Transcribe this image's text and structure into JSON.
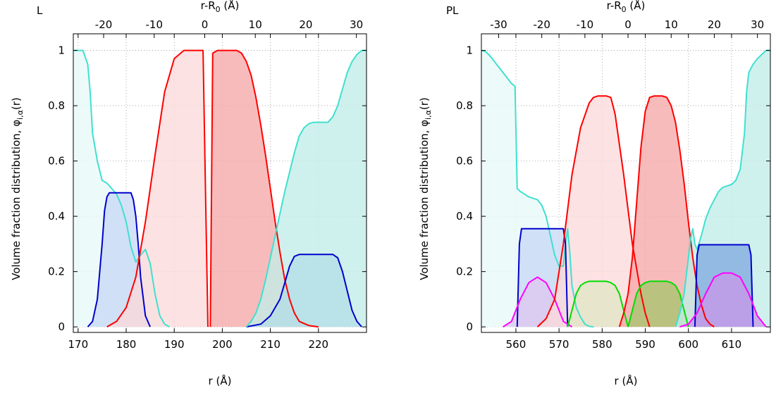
{
  "chart_data": [
    {
      "type": "area",
      "panel_label": "L",
      "xlabel": "r (Å)",
      "x2label": "r-R",
      "x2label_sub": "0",
      "x2label_tail": " (Å)",
      "ylabel": "Volume fraction distribution, φ",
      "ylabel_sub": "i,α",
      "ylabel_tail": "(r)",
      "xlim": [
        169,
        230
      ],
      "x2lim": [
        -26,
        32
      ],
      "ylim": [
        -0.02,
        1.06
      ],
      "xticks": [
        170,
        180,
        190,
        200,
        210,
        220
      ],
      "x2ticks": [
        -20,
        -10,
        0,
        10,
        20,
        30
      ],
      "yticks": [
        0,
        0.2,
        0.4,
        0.6,
        0.8,
        1
      ],
      "xtick_labels": [
        "170",
        "180",
        "190",
        "200",
        "210",
        "220"
      ],
      "x2tick_labels": [
        "-20",
        "-10",
        "0",
        "10",
        "20",
        "30"
      ],
      "ytick_labels": [
        "0",
        "0.2",
        "0.4",
        "0.6",
        "0.8",
        "1"
      ],
      "grid": true,
      "series": [
        {
          "color": "#40e0d0",
          "fill": "#e8f8f8",
          "x": [
            169,
            170,
            171,
            172,
            172.5,
            173,
            174,
            175,
            176,
            177,
            178,
            179,
            180,
            181,
            182,
            183,
            184,
            185,
            186,
            187,
            188,
            189
          ],
          "y": [
            1.0,
            1.0,
            1.0,
            0.95,
            0.85,
            0.7,
            0.6,
            0.53,
            0.52,
            0.5,
            0.48,
            0.44,
            0.38,
            0.29,
            0.235,
            0.26,
            0.28,
            0.23,
            0.12,
            0.04,
            0.01,
            0.0
          ]
        },
        {
          "color": "#0000cd",
          "fill": "#c8d8f5",
          "x": [
            172,
            173,
            174,
            175,
            175.5,
            176,
            176.5,
            177,
            179,
            181,
            181.5,
            182,
            182.5,
            183,
            184,
            185
          ],
          "y": [
            0.0,
            0.02,
            0.1,
            0.3,
            0.42,
            0.47,
            0.485,
            0.485,
            0.485,
            0.485,
            0.46,
            0.4,
            0.3,
            0.18,
            0.04,
            0.0
          ]
        },
        {
          "color": "#ff0000",
          "fill": "#fbdada",
          "x": [
            176,
            178,
            180,
            182,
            184,
            186,
            188,
            190,
            192,
            194,
            196,
            196.5,
            197
          ],
          "y": [
            0.0,
            0.02,
            0.07,
            0.18,
            0.38,
            0.62,
            0.85,
            0.97,
            1.0,
            1.0,
            1.0,
            0.5,
            0.0
          ]
        },
        {
          "color": "#ff0000",
          "fill": "#f6a8a8",
          "x": [
            197.5,
            198,
            199,
            200,
            202,
            203,
            204,
            205,
            206,
            207,
            208,
            209,
            210,
            211,
            212,
            213,
            214,
            215,
            216,
            218,
            220
          ],
          "y": [
            0.0,
            0.99,
            1.0,
            1.0,
            1.0,
            1.0,
            0.99,
            0.96,
            0.91,
            0.83,
            0.73,
            0.62,
            0.5,
            0.38,
            0.27,
            0.17,
            0.1,
            0.05,
            0.02,
            0.005,
            0.0
          ]
        },
        {
          "color": "#0000cd",
          "fill": "#80aae0",
          "x": [
            205,
            208,
            210,
            212,
            213,
            214,
            215,
            216,
            218,
            221,
            223,
            224,
            225,
            226,
            227,
            228,
            229
          ],
          "y": [
            0.0,
            0.01,
            0.04,
            0.1,
            0.16,
            0.22,
            0.255,
            0.262,
            0.262,
            0.262,
            0.262,
            0.25,
            0.2,
            0.13,
            0.06,
            0.02,
            0.0
          ]
        },
        {
          "color": "#40e0d0",
          "fill": "#c2ede8",
          "x": [
            205,
            206,
            207,
            208,
            209,
            210,
            211,
            212,
            213,
            214,
            215,
            216,
            217,
            218,
            219,
            220,
            221,
            222,
            223,
            224,
            225,
            226,
            227,
            228,
            229,
            230
          ],
          "y": [
            0.0,
            0.02,
            0.05,
            0.1,
            0.17,
            0.25,
            0.33,
            0.41,
            0.49,
            0.56,
            0.63,
            0.69,
            0.72,
            0.735,
            0.74,
            0.74,
            0.74,
            0.74,
            0.76,
            0.8,
            0.86,
            0.92,
            0.96,
            0.985,
            1.0,
            1.0
          ]
        }
      ]
    },
    {
      "type": "area",
      "panel_label": "PL",
      "xlabel": "r (Å)",
      "x2label": "r-R",
      "x2label_sub": "0",
      "x2label_tail": " (Å)",
      "ylabel": "Volume fraction distribution, φ",
      "ylabel_sub": "i,α",
      "ylabel_tail": "(r)",
      "xlim": [
        552,
        619
      ],
      "x2lim": [
        -34,
        33
      ],
      "ylim": [
        -0.02,
        1.06
      ],
      "xticks": [
        560,
        570,
        580,
        590,
        600,
        610
      ],
      "x2ticks": [
        -30,
        -20,
        -10,
        0,
        10,
        20,
        30
      ],
      "yticks": [
        0,
        0.2,
        0.4,
        0.6,
        0.8,
        1
      ],
      "xtick_labels": [
        "560",
        "570",
        "580",
        "590",
        "600",
        "610"
      ],
      "x2tick_labels": [
        "-30",
        "-20",
        "-10",
        "0",
        "10",
        "20",
        "30"
      ],
      "ytick_labels": [
        "0",
        "0.2",
        "0.4",
        "0.6",
        "0.8",
        "1"
      ],
      "grid": true,
      "series": [
        {
          "color": "#40e0d0",
          "fill": "#e8f8f8",
          "x": [
            552,
            553,
            554,
            555,
            556,
            557,
            558,
            559,
            559.8,
            560.3,
            561,
            562,
            563,
            564,
            565,
            566,
            567,
            568,
            569,
            570,
            571,
            571.5,
            572,
            572.5,
            573,
            574,
            575,
            576,
            577,
            578
          ],
          "y": [
            1.0,
            0.995,
            0.98,
            0.96,
            0.94,
            0.92,
            0.9,
            0.88,
            0.87,
            0.5,
            0.49,
            0.48,
            0.47,
            0.465,
            0.46,
            0.44,
            0.4,
            0.33,
            0.26,
            0.22,
            0.22,
            0.3,
            0.355,
            0.27,
            0.15,
            0.07,
            0.035,
            0.01,
            0.002,
            0.0
          ]
        },
        {
          "color": "#0000cd",
          "fill": "#c8d8f5",
          "x": [
            560.3,
            560.8,
            561.3,
            571,
            571.5,
            572
          ],
          "y": [
            0.0,
            0.3,
            0.355,
            0.355,
            0.3,
            0.0
          ]
        },
        {
          "color": "#ff00ff",
          "fill": "#dcc8f0",
          "x": [
            557,
            559,
            561,
            563,
            565,
            567,
            569,
            571,
            573
          ],
          "y": [
            0.0,
            0.02,
            0.1,
            0.16,
            0.18,
            0.16,
            0.1,
            0.02,
            0.0
          ]
        },
        {
          "color": "#ff0000",
          "fill": "#fbdada",
          "x": [
            565,
            567,
            569,
            571,
            573,
            575,
            577,
            578,
            579,
            580,
            581,
            582,
            583,
            585,
            587,
            589,
            590,
            591
          ],
          "y": [
            0.0,
            0.03,
            0.1,
            0.3,
            0.55,
            0.72,
            0.81,
            0.83,
            0.835,
            0.835,
            0.835,
            0.83,
            0.77,
            0.55,
            0.3,
            0.12,
            0.05,
            0.0
          ]
        },
        {
          "color": "#00dd00",
          "fill": "#e0e6c4",
          "x": [
            572,
            573,
            574,
            575,
            576,
            577,
            578,
            579,
            580,
            581,
            582,
            583,
            584,
            585,
            586
          ],
          "y": [
            0.0,
            0.06,
            0.12,
            0.15,
            0.16,
            0.165,
            0.165,
            0.165,
            0.165,
            0.165,
            0.16,
            0.15,
            0.12,
            0.06,
            0.0
          ]
        },
        {
          "color": "#ff0000",
          "fill": "#f6a8a8",
          "x": [
            584,
            585,
            586,
            587,
            588,
            589,
            590,
            591,
            592,
            593,
            594,
            595,
            596,
            597,
            598,
            599,
            600,
            601,
            602,
            603,
            604,
            605,
            606
          ],
          "y": [
            0.0,
            0.05,
            0.12,
            0.25,
            0.45,
            0.65,
            0.78,
            0.83,
            0.835,
            0.835,
            0.835,
            0.83,
            0.8,
            0.74,
            0.64,
            0.52,
            0.38,
            0.25,
            0.15,
            0.08,
            0.03,
            0.01,
            0.0
          ]
        },
        {
          "color": "#00dd00",
          "fill": "#a8c46e",
          "x": [
            586,
            587,
            588,
            589,
            590,
            591,
            592,
            593,
            594,
            595,
            596,
            597,
            598,
            599,
            600
          ],
          "y": [
            0.0,
            0.06,
            0.12,
            0.15,
            0.16,
            0.165,
            0.165,
            0.165,
            0.165,
            0.165,
            0.16,
            0.15,
            0.12,
            0.06,
            0.0
          ]
        },
        {
          "color": "#40e0d0",
          "fill": "#c2ede8",
          "x": [
            597,
            598,
            599,
            600,
            600.5,
            601,
            601.5,
            602,
            603,
            604,
            605,
            606,
            607,
            608,
            609,
            610,
            611,
            612,
            613,
            613.5,
            614,
            615,
            616,
            617,
            618,
            619
          ],
          "y": [
            0.0,
            0.05,
            0.12,
            0.25,
            0.32,
            0.355,
            0.3,
            0.28,
            0.33,
            0.39,
            0.43,
            0.46,
            0.49,
            0.505,
            0.51,
            0.515,
            0.53,
            0.57,
            0.7,
            0.85,
            0.92,
            0.95,
            0.97,
            0.985,
            1.0,
            1.0
          ]
        },
        {
          "color": "#0000cd",
          "fill": "#80aae0",
          "x": [
            601.5,
            602,
            602.5,
            614,
            614.5,
            615
          ],
          "y": [
            0.0,
            0.26,
            0.297,
            0.297,
            0.26,
            0.0
          ]
        },
        {
          "color": "#ff00ff",
          "fill": "#c898e8",
          "x": [
            598,
            600,
            602,
            604,
            606,
            608,
            610,
            612,
            614,
            616,
            618
          ],
          "y": [
            0.0,
            0.01,
            0.05,
            0.12,
            0.18,
            0.195,
            0.195,
            0.18,
            0.12,
            0.04,
            0.0
          ]
        }
      ]
    }
  ]
}
